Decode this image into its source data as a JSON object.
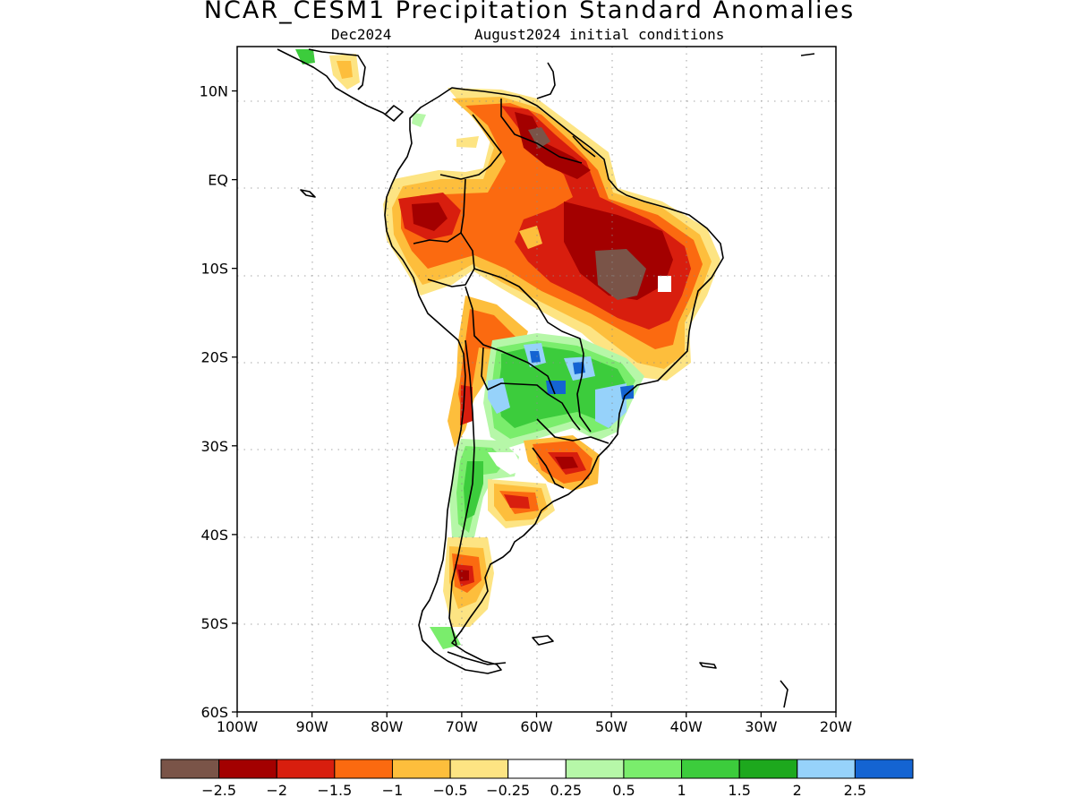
{
  "title": "NCAR_CESM1 Precipitation Standard Anomalies",
  "subtitle": {
    "valid_month": "Dec2024",
    "initial_conditions": "August2024 initial conditions"
  },
  "map": {
    "projection": "lat-lon",
    "lon_range": [
      -100,
      -20
    ],
    "lat_range": [
      -60,
      15
    ],
    "lat_ticks": [
      {
        "value": 10,
        "label": "10N"
      },
      {
        "value": 0,
        "label": "EQ"
      },
      {
        "value": -10,
        "label": "10S"
      },
      {
        "value": -20,
        "label": "20S"
      },
      {
        "value": -30,
        "label": "30S"
      },
      {
        "value": -40,
        "label": "40S"
      },
      {
        "value": -50,
        "label": "50S"
      },
      {
        "value": -60,
        "label": "60S"
      }
    ],
    "lon_ticks": [
      {
        "value": -100,
        "label": "100W"
      },
      {
        "value": -90,
        "label": "90W"
      },
      {
        "value": -80,
        "label": "80W"
      },
      {
        "value": -70,
        "label": "70W"
      },
      {
        "value": -60,
        "label": "60W"
      },
      {
        "value": -50,
        "label": "50W"
      },
      {
        "value": -40,
        "label": "40W"
      },
      {
        "value": -30,
        "label": "30W"
      },
      {
        "value": -20,
        "label": "20W"
      }
    ],
    "grid": true
  },
  "colorbar": {
    "colors": [
      "#7a5448",
      "#a30000",
      "#d81e0e",
      "#fb6a10",
      "#fdbe3c",
      "#fde483",
      "#ffffff",
      "#b6f7a8",
      "#7aed6c",
      "#3ccc3c",
      "#1da81d",
      "#96d2fa",
      "#1464d2"
    ],
    "labels": [
      "−2.5",
      "−2",
      "−1.5",
      "−1",
      "−0.5",
      "−0.25",
      "0.25",
      "0.5",
      "1",
      "1.5",
      "2",
      "2.5"
    ]
  }
}
